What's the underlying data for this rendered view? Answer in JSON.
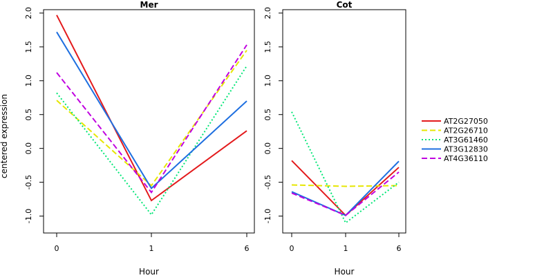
{
  "chart_data": {
    "type": "line",
    "ylabel": "centered expression",
    "xlabel": "Hour",
    "x_categories": [
      "0",
      "1",
      "6"
    ],
    "ylim": [
      -1.25,
      2.05
    ],
    "y_ticks": [
      -1.0,
      -0.5,
      0.0,
      0.5,
      1.0,
      1.5,
      2.0
    ],
    "y_tick_labels": [
      "-1.0",
      "-0.5",
      "0.0",
      "0.5",
      "1.0",
      "1.5",
      "2.0"
    ],
    "grid": false,
    "legend_position": "right",
    "series_styles": [
      {
        "name": "AT2G27050",
        "color": "#e31a1c",
        "dash": "solid"
      },
      {
        "name": "AT2G26710",
        "color": "#e6e600",
        "dash": "dashed"
      },
      {
        "name": "AT3G61460",
        "color": "#00e676",
        "dash": "dotted"
      },
      {
        "name": "AT3G12830",
        "color": "#1e6fe0",
        "dash": "solid"
      },
      {
        "name": "AT4G36110",
        "color": "#c000e0",
        "dash": "dashed"
      }
    ],
    "panels": [
      {
        "title": "Mer",
        "series": [
          {
            "name": "AT2G27050",
            "values": [
              1.97,
              -0.77,
              0.26
            ]
          },
          {
            "name": "AT2G26710",
            "values": [
              0.71,
              -0.55,
              1.45
            ]
          },
          {
            "name": "AT3G61460",
            "values": [
              0.82,
              -0.98,
              1.22
            ]
          },
          {
            "name": "AT3G12830",
            "values": [
              1.72,
              -0.59,
              0.7
            ]
          },
          {
            "name": "AT4G36110",
            "values": [
              1.12,
              -0.65,
              1.53
            ]
          }
        ]
      },
      {
        "title": "Cot",
        "series": [
          {
            "name": "AT2G27050",
            "values": [
              -0.18,
              -0.99,
              -0.28
            ]
          },
          {
            "name": "AT2G26710",
            "values": [
              -0.54,
              -0.56,
              -0.55
            ]
          },
          {
            "name": "AT3G61460",
            "values": [
              0.54,
              -1.1,
              -0.5
            ]
          },
          {
            "name": "AT3G12830",
            "values": [
              -0.64,
              -0.99,
              -0.19
            ]
          },
          {
            "name": "AT4G36110",
            "values": [
              -0.66,
              -0.99,
              -0.35
            ]
          }
        ]
      }
    ]
  }
}
